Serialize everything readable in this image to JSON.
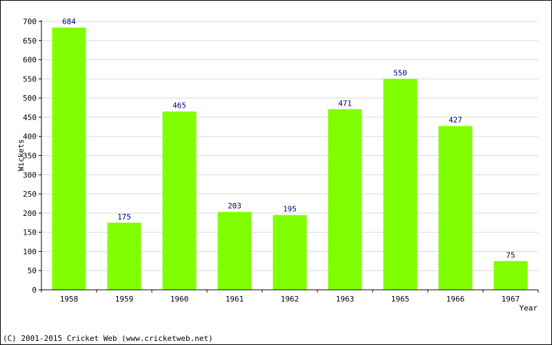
{
  "chart_data": {
    "type": "bar",
    "categories": [
      "1958",
      "1959",
      "1960",
      "1961",
      "1962",
      "1963",
      "1965",
      "1966",
      "1967"
    ],
    "values": [
      684,
      175,
      465,
      203,
      195,
      471,
      550,
      427,
      75
    ],
    "data_labels": [
      "684",
      "175",
      "465",
      "203",
      "195",
      "471",
      "550",
      "427",
      "75"
    ],
    "xlabel": "Year",
    "ylabel": "Wickets",
    "ylim": [
      0,
      700
    ],
    "yticks": [
      "0",
      "50",
      "100",
      "150",
      "200",
      "250",
      "300",
      "350",
      "400",
      "450",
      "500",
      "550",
      "600",
      "650",
      "700"
    ],
    "grid": true,
    "bar_color": "#80ff00",
    "label_color": "#000080",
    "grid_color": "#d9d9d9"
  },
  "footer": {
    "copyright": "(C) 2001-2015 Cricket Web (www.cricketweb.net)"
  }
}
